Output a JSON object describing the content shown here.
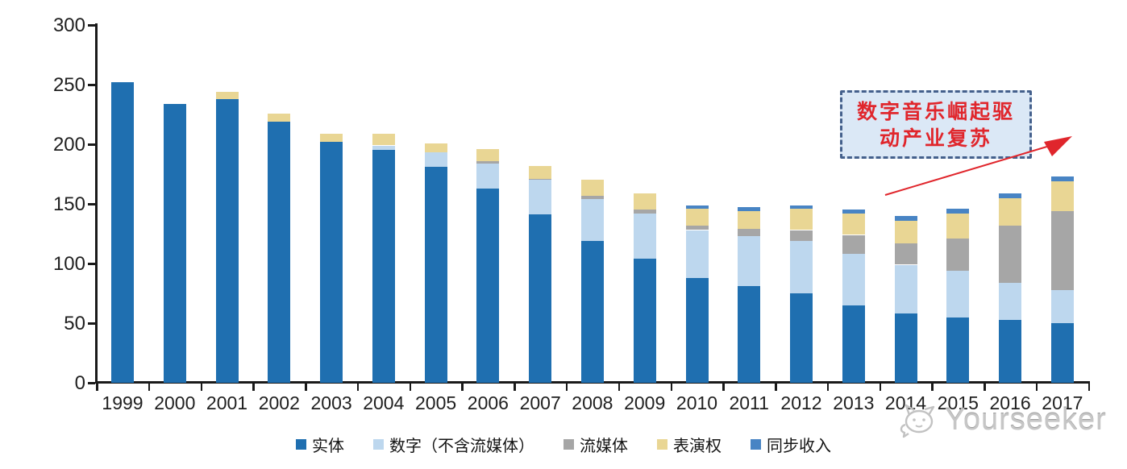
{
  "chart_data": {
    "type": "bar",
    "stacked": true,
    "title": "",
    "xlabel": "",
    "ylabel": "",
    "ylim": [
      0,
      300
    ],
    "yticks": [
      0,
      50,
      100,
      150,
      200,
      250,
      300
    ],
    "grid": false,
    "legend_position": "bottom",
    "categories": [
      "1999",
      "2000",
      "2001",
      "2002",
      "2003",
      "2004",
      "2005",
      "2006",
      "2007",
      "2008",
      "2009",
      "2010",
      "2011",
      "2012",
      "2013",
      "2014",
      "2015",
      "2016",
      "2017"
    ],
    "series": [
      {
        "name": "实体",
        "color": "#1f6fb0",
        "values": [
          252,
          234,
          238,
          219,
          202,
          195,
          181,
          163,
          141,
          119,
          104,
          88,
          81,
          75,
          65,
          58,
          55,
          53,
          50
        ]
      },
      {
        "name": "数字（不含流媒体）",
        "color": "#bdd7ee",
        "values": [
          0,
          0,
          0,
          0,
          0,
          4,
          12,
          21,
          29,
          35,
          38,
          40,
          42,
          44,
          43,
          41,
          39,
          31,
          28
        ]
      },
      {
        "name": "流媒体",
        "color": "#a6a6a6",
        "values": [
          0,
          0,
          0,
          0,
          0,
          0,
          0,
          2,
          1,
          3,
          3,
          4,
          6,
          9,
          16,
          18,
          27,
          48,
          66
        ]
      },
      {
        "name": "表演权",
        "color": "#e9d694",
        "values": [
          0,
          0,
          6,
          7,
          7,
          10,
          8,
          10,
          11,
          13,
          14,
          14,
          15,
          18,
          18,
          19,
          21,
          23,
          25
        ]
      },
      {
        "name": "同步收入",
        "color": "#4884c4",
        "values": [
          0,
          0,
          0,
          0,
          0,
          0,
          0,
          0,
          0,
          0,
          0,
          3,
          3,
          3,
          3,
          4,
          4,
          4,
          4
        ]
      }
    ]
  },
  "annotation": {
    "line1": "数字音乐崛起驱",
    "line2": "动产业复苏",
    "text_color": "#e0262c",
    "box_fill": "#dbe8f6",
    "box_border": "#44608c",
    "arrow_color": "#e0262c"
  },
  "watermark": {
    "label": "Yourseeker",
    "icon": "cat-logo-icon",
    "color": "#c6c6c6"
  }
}
